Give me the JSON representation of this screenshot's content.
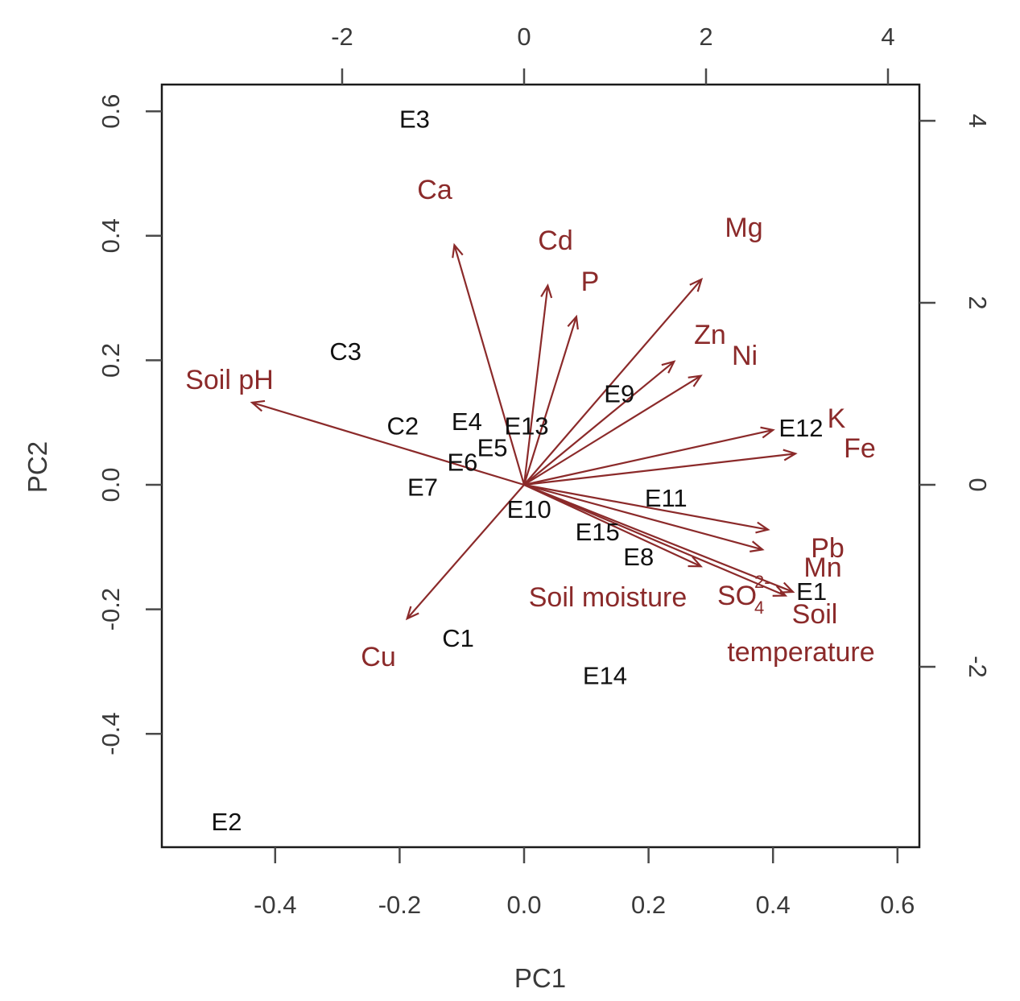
{
  "chart_data": {
    "type": "scatter",
    "subtype": "pca-biplot",
    "xlabel": "PC1",
    "ylabel": "PC2",
    "xlim": [
      -0.56,
      0.6
    ],
    "ylim": [
      -0.58,
      0.61
    ],
    "grid": false,
    "variable_color": "#8b2a2a",
    "observation_color": "#111111",
    "x_ticks": [
      "-0.4",
      "-0.2",
      "0.0",
      "0.2",
      "0.4",
      "0.6"
    ],
    "y_ticks": [
      "-0.4",
      "-0.2",
      "0.0",
      "0.2",
      "0.4",
      "0.6"
    ],
    "top_ticks": [
      "-2",
      "0",
      "2",
      "4"
    ],
    "right_ticks": [
      "-2",
      "0",
      "2",
      "4"
    ],
    "observations": [
      {
        "label": "E3",
        "x": -0.176,
        "y": 0.588
      },
      {
        "label": "C3",
        "x": -0.287,
        "y": 0.215
      },
      {
        "label": "C2",
        "x": -0.195,
        "y": 0.095
      },
      {
        "label": "E4",
        "x": -0.092,
        "y": 0.102
      },
      {
        "label": "E13",
        "x": 0.004,
        "y": 0.095
      },
      {
        "label": "E5",
        "x": -0.051,
        "y": 0.06
      },
      {
        "label": "E6",
        "x": -0.099,
        "y": 0.037
      },
      {
        "label": "E7",
        "x": -0.163,
        "y": -0.003
      },
      {
        "label": "E9",
        "x": 0.153,
        "y": 0.147
      },
      {
        "label": "E12",
        "x": 0.445,
        "y": 0.092
      },
      {
        "label": "E10",
        "x": 0.008,
        "y": -0.039
      },
      {
        "label": "E11",
        "x": 0.228,
        "y": -0.021
      },
      {
        "label": "E15",
        "x": 0.118,
        "y": -0.075
      },
      {
        "label": "E8",
        "x": 0.184,
        "y": -0.115
      },
      {
        "label": "E1",
        "x": 0.462,
        "y": -0.171
      },
      {
        "label": "C1",
        "x": -0.106,
        "y": -0.246
      },
      {
        "label": "E14",
        "x": 0.13,
        "y": -0.306
      },
      {
        "label": "E2",
        "x": -0.478,
        "y": -0.541
      }
    ],
    "variables": [
      {
        "label": "Ca",
        "x": -0.112,
        "y": 0.385
      },
      {
        "label": "Cd",
        "x": 0.038,
        "y": 0.32
      },
      {
        "label": "P",
        "x": 0.084,
        "y": 0.27
      },
      {
        "label": "Mg",
        "x": 0.285,
        "y": 0.33
      },
      {
        "label": "Zn",
        "x": 0.241,
        "y": 0.198
      },
      {
        "label": "Ni",
        "x": 0.284,
        "y": 0.175
      },
      {
        "label": "K",
        "x": 0.4,
        "y": 0.088
      },
      {
        "label": "Fe",
        "x": 0.436,
        "y": 0.05
      },
      {
        "label": "Pb",
        "x": 0.392,
        "y": -0.072
      },
      {
        "label": "Mn",
        "x": 0.383,
        "y": -0.104
      },
      {
        "label": "SO42",
        "x": 0.42,
        "y": -0.178
      },
      {
        "label": "Soil temperature",
        "x": 0.432,
        "y": -0.172
      },
      {
        "label": "Soil moisture",
        "x": 0.284,
        "y": -0.131
      },
      {
        "label": "Soil pH",
        "x": -0.437,
        "y": 0.132
      },
      {
        "label": "Cu",
        "x": -0.188,
        "y": -0.215
      }
    ],
    "variable_label_texts": {
      "ca": "Ca",
      "cd": "Cd",
      "p": "P",
      "mg": "Mg",
      "zn": "Zn",
      "ni": "Ni",
      "k": "K",
      "fe": "Fe",
      "pb": "Pb",
      "mn": "Mn",
      "so4_main": "SO",
      "so4_sub": "4",
      "so4_sup": "2-",
      "soil_moisture": "Soil moisture",
      "soil_temp_line1": "Soil",
      "soil_temp_line2": "temperature",
      "soil_ph": "Soil pH",
      "cu": "Cu"
    }
  }
}
